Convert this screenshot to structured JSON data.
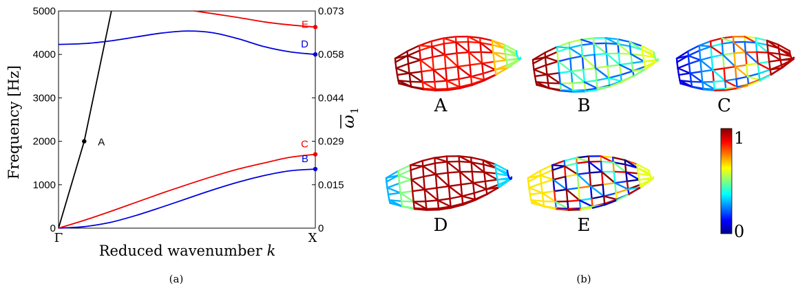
{
  "chart_data": {
    "type": "line",
    "xlabel": "Reduced wavenumber",
    "xlabel_var": "k",
    "ylabel": "Frequency [Hz]",
    "y2label_main": "ω",
    "y2label_sub": "1",
    "x_ticks": [
      "Γ",
      "X"
    ],
    "ylim": [
      0,
      5000
    ],
    "y_ticks": [
      "0",
      "1000",
      "2000",
      "3000",
      "4000",
      "5000"
    ],
    "y2_ticks": [
      "0",
      "0.015",
      "0.029",
      "0.044",
      "0.058",
      "0.073"
    ],
    "series": [
      {
        "color": "#000000",
        "points": [
          [
            0,
            0
          ],
          [
            0.1,
            2000
          ],
          [
            0.206,
            5000
          ]
        ]
      },
      {
        "color": "#0000dd",
        "points": [
          [
            0,
            0
          ],
          [
            0.1,
            35
          ],
          [
            0.2,
            130
          ],
          [
            0.3,
            290
          ],
          [
            0.4,
            480
          ],
          [
            0.5,
            680
          ],
          [
            0.6,
            880
          ],
          [
            0.7,
            1060
          ],
          [
            0.8,
            1210
          ],
          [
            0.9,
            1320
          ],
          [
            1,
            1360
          ]
        ]
      },
      {
        "color": "#ee0000",
        "points": [
          [
            0,
            0
          ],
          [
            0.1,
            180
          ],
          [
            0.2,
            380
          ],
          [
            0.3,
            590
          ],
          [
            0.4,
            800
          ],
          [
            0.5,
            1000
          ],
          [
            0.6,
            1190
          ],
          [
            0.7,
            1360
          ],
          [
            0.8,
            1500
          ],
          [
            0.9,
            1630
          ],
          [
            1,
            1700
          ]
        ]
      },
      {
        "color": "#0000dd",
        "points": [
          [
            0,
            4230
          ],
          [
            0.1,
            4250
          ],
          [
            0.2,
            4310
          ],
          [
            0.3,
            4400
          ],
          [
            0.4,
            4490
          ],
          [
            0.5,
            4540
          ],
          [
            0.6,
            4500
          ],
          [
            0.7,
            4360
          ],
          [
            0.8,
            4180
          ],
          [
            0.9,
            4060
          ],
          [
            1,
            4000
          ]
        ]
      },
      {
        "color": "#ee0000",
        "points": [
          [
            0.53,
            5000
          ],
          [
            0.6,
            4940
          ],
          [
            0.7,
            4850
          ],
          [
            0.8,
            4750
          ],
          [
            0.9,
            4680
          ],
          [
            1,
            4630
          ]
        ]
      }
    ],
    "markers": [
      {
        "label": "A",
        "x": 0.1,
        "y": 2000,
        "color": "#000000",
        "label_side": "right"
      },
      {
        "label": "B",
        "x": 1,
        "y": 1360,
        "color": "#0000dd",
        "label_side": "left"
      },
      {
        "label": "C",
        "x": 1,
        "y": 1700,
        "color": "#ee0000",
        "label_side": "left"
      },
      {
        "label": "D",
        "x": 1,
        "y": 4000,
        "color": "#0000dd",
        "label_side": "left"
      },
      {
        "label": "E",
        "x": 1,
        "y": 4630,
        "color": "#ee0000",
        "label_side": "left"
      }
    ]
  },
  "panel_a_caption": "(a)",
  "panel_b_caption": "(b)",
  "modes": [
    {
      "label": "A",
      "scheme": "red"
    },
    {
      "label": "B",
      "scheme": "cyan"
    },
    {
      "label": "C",
      "scheme": "mixc"
    },
    {
      "label": "D",
      "scheme": "red2"
    },
    {
      "label": "E",
      "scheme": "mixe"
    }
  ],
  "colorbar": {
    "max_label": "1",
    "min_label": "0"
  }
}
